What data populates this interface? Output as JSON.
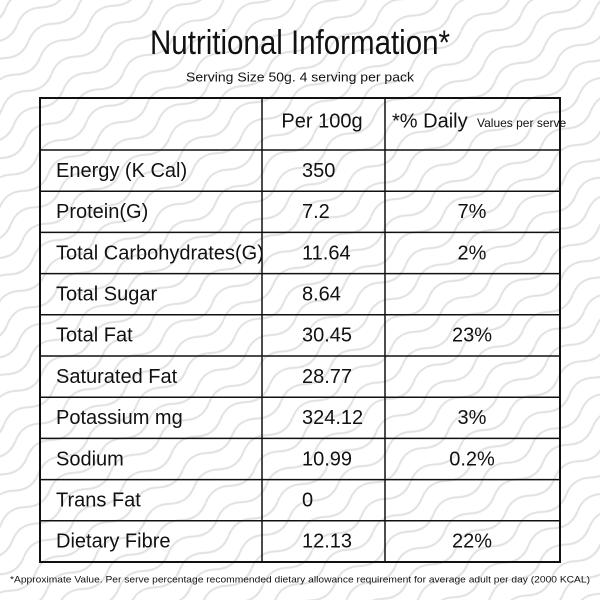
{
  "header": {
    "title": "Nutritional Information*",
    "subtitle": "Serving Size 50g. 4 serving per pack"
  },
  "table": {
    "columns": {
      "per_100g": "Per 100g",
      "daily": "*% Daily",
      "daily_note": "Values per serve"
    },
    "rows": [
      {
        "name": "Energy (K Cal)",
        "per_100g": "350"
      },
      {
        "name": "Protein(G)",
        "per_100g": "7.2",
        "daily": "7%"
      },
      {
        "name": "Total Carbohydrates(G)",
        "per_100g": "11.64",
        "daily": "2%"
      },
      {
        "name": "Total Sugar",
        "per_100g": "8.64"
      },
      {
        "name": "Total Fat",
        "per_100g": "30.45",
        "daily": "23%"
      },
      {
        "name": "Saturated Fat",
        "per_100g": "28.77"
      },
      {
        "name": "Potassium mg",
        "per_100g": "324.12",
        "daily": "3%"
      },
      {
        "name": "Sodium",
        "per_100g": "10.99",
        "daily": "0.2%"
      },
      {
        "name": "Trans Fat",
        "per_100g": "0"
      },
      {
        "name": "Dietary Fibre",
        "per_100g": "12.13",
        "daily": "22%"
      }
    ]
  },
  "footnote": "*Approximate Value. Per serve percentage recommended dietary allowance requirement for average adult per day (2000 KCAL)"
}
